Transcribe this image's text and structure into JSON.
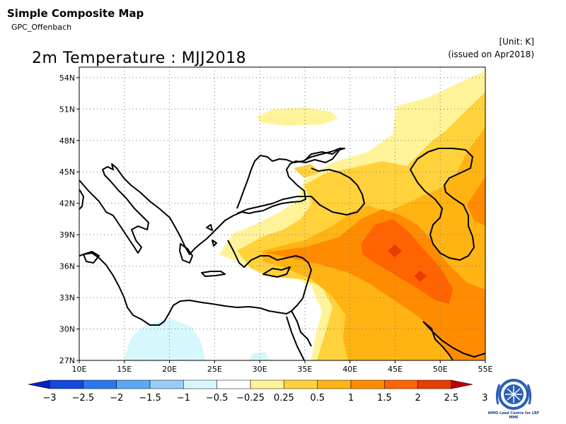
{
  "header": {
    "title": "Simple Composite Map",
    "subtitle": "GPC_Offenbach",
    "unit": "[Unit: K]",
    "issued": "(issued on Apr2018)"
  },
  "map": {
    "title": "2m Temperature : MJJ2018",
    "lon_range": [
      10,
      55
    ],
    "lat_range": [
      27,
      55
    ],
    "lon_ticks": [
      "10E",
      "15E",
      "20E",
      "25E",
      "30E",
      "35E",
      "40E",
      "45E",
      "50E",
      "55E"
    ],
    "lat_ticks": [
      "27N",
      "30N",
      "33N",
      "36N",
      "39N",
      "42N",
      "45N",
      "48N",
      "51N",
      "54N"
    ],
    "grid": true
  },
  "colorbar": {
    "labels": [
      "−3",
      "−2.5",
      "−2",
      "−1.5",
      "−1",
      "−0.5",
      "−0.25",
      "0.25",
      "0.5",
      "1",
      "1.5",
      "2",
      "2.5",
      "3"
    ],
    "colors": [
      "#0a1fbf",
      "#1446e0",
      "#2a78ef",
      "#5aa8f5",
      "#97cdf8",
      "#d6f8fd",
      "#ffffff",
      "#fff39a",
      "#ffd23c",
      "#ffb414",
      "#ff8c00",
      "#ff6400",
      "#e83c00",
      "#c00000"
    ]
  },
  "logo": {
    "text": "WMO Lead Centre for LRF MME"
  },
  "colors": {
    "c025": "#fff39a",
    "c05": "#ffd23c",
    "c1": "#ffb414",
    "c15": "#ff8c00",
    "c2": "#ff6400",
    "cneg": "#d6f8fd"
  }
}
